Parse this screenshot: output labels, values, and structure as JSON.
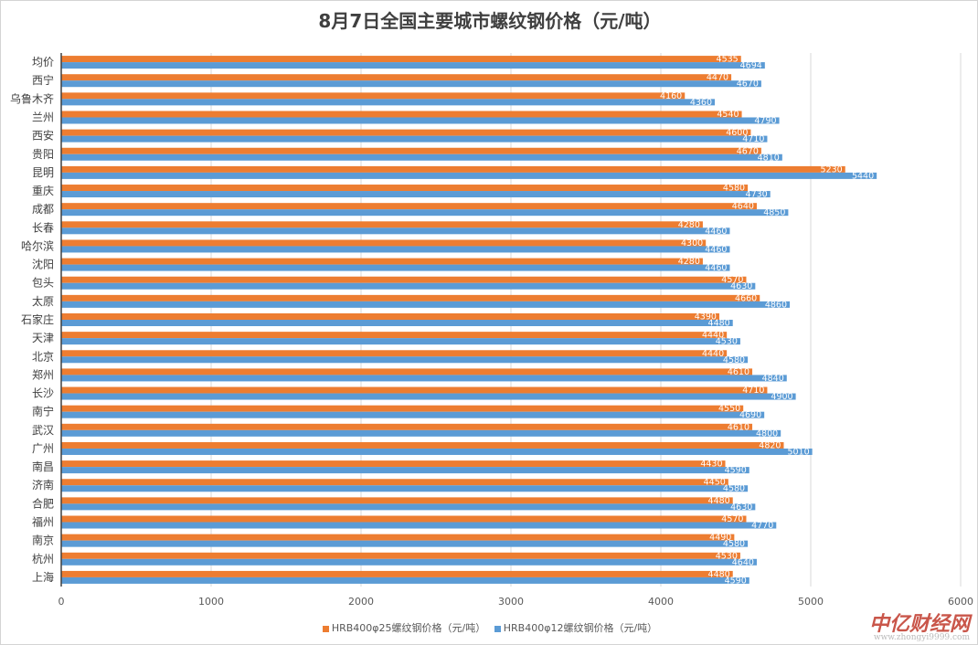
{
  "chart_data": {
    "type": "bar",
    "orientation": "horizontal",
    "title": "8月7日全国主要城市螺纹钢价格（元/吨）",
    "categories": [
      "均价",
      "西宁",
      "乌鲁木齐",
      "兰州",
      "西安",
      "贵阳",
      "昆明",
      "重庆",
      "成都",
      "长春",
      "哈尔滨",
      "沈阳",
      "包头",
      "太原",
      "石家庄",
      "天津",
      "北京",
      "郑州",
      "长沙",
      "南宁",
      "武汉",
      "广州",
      "南昌",
      "济南",
      "合肥",
      "福州",
      "南京",
      "杭州",
      "上海"
    ],
    "series": [
      {
        "name": "HRB400φ25螺纹钢价格（元/吨）",
        "color": "#ed7d31",
        "values": [
          4535,
          4470,
          4160,
          4540,
          4600,
          4670,
          5230,
          4580,
          4640,
          4280,
          4300,
          4280,
          4570,
          4660,
          4390,
          4440,
          4440,
          4610,
          4710,
          4550,
          4610,
          4820,
          4430,
          4450,
          4480,
          4570,
          4490,
          4530,
          4480
        ]
      },
      {
        "name": "HRB400φ12螺纹钢价格（元/吨）",
        "color": "#5b9bd5",
        "values": [
          4694,
          4670,
          4360,
          4790,
          4710,
          4810,
          5440,
          4730,
          4850,
          4460,
          4460,
          4460,
          4630,
          4860,
          4480,
          4530,
          4580,
          4840,
          4900,
          4690,
          4800,
          5010,
          4590,
          4580,
          4630,
          4770,
          4580,
          4640,
          4590
        ]
      }
    ],
    "xlim": [
      0,
      6000
    ],
    "xticks": [
      0,
      1000,
      2000,
      3000,
      4000,
      5000,
      6000
    ],
    "grid": true,
    "legend_position": "bottom"
  },
  "watermark": {
    "text": "中亿财经网",
    "url": "www.zhongyi9999.com"
  }
}
